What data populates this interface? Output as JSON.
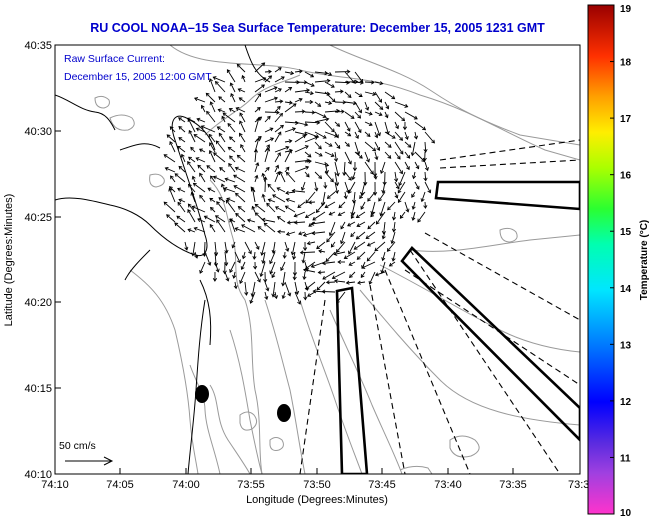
{
  "title": "RU COOL  NOAA–15  Sea Surface Temperature:  December 15, 2005 1231 GMT",
  "overlay": {
    "line1": "Raw Surface Current:",
    "line2": "December 15, 2005 12:00 GMT"
  },
  "axes": {
    "x_label": "Longitude (Degrees:Minutes)",
    "y_label": "Latitude (Degrees:Minutes)",
    "x_ticks": [
      "74:10",
      "74:05",
      "74:00",
      "73:55",
      "73:50",
      "73:45",
      "73:40",
      "73:35",
      "73:3"
    ],
    "y_ticks": [
      "40:35",
      "40:30",
      "40:25",
      "40:20",
      "40:15",
      "40:10"
    ]
  },
  "colorbar": {
    "label": "Temperature (°C)",
    "min": 10,
    "max": 19,
    "ticks": [
      "19",
      "18",
      "17",
      "16",
      "15",
      "14",
      "13",
      "12",
      "11",
      "10"
    ]
  },
  "scale_arrow": {
    "label": "50 cm/s"
  },
  "colors": {
    "title": "#0000cc",
    "frame": "#000000",
    "coast": "#000000",
    "bathymetry": "#9a9a9a",
    "vectors": "#000000"
  }
}
